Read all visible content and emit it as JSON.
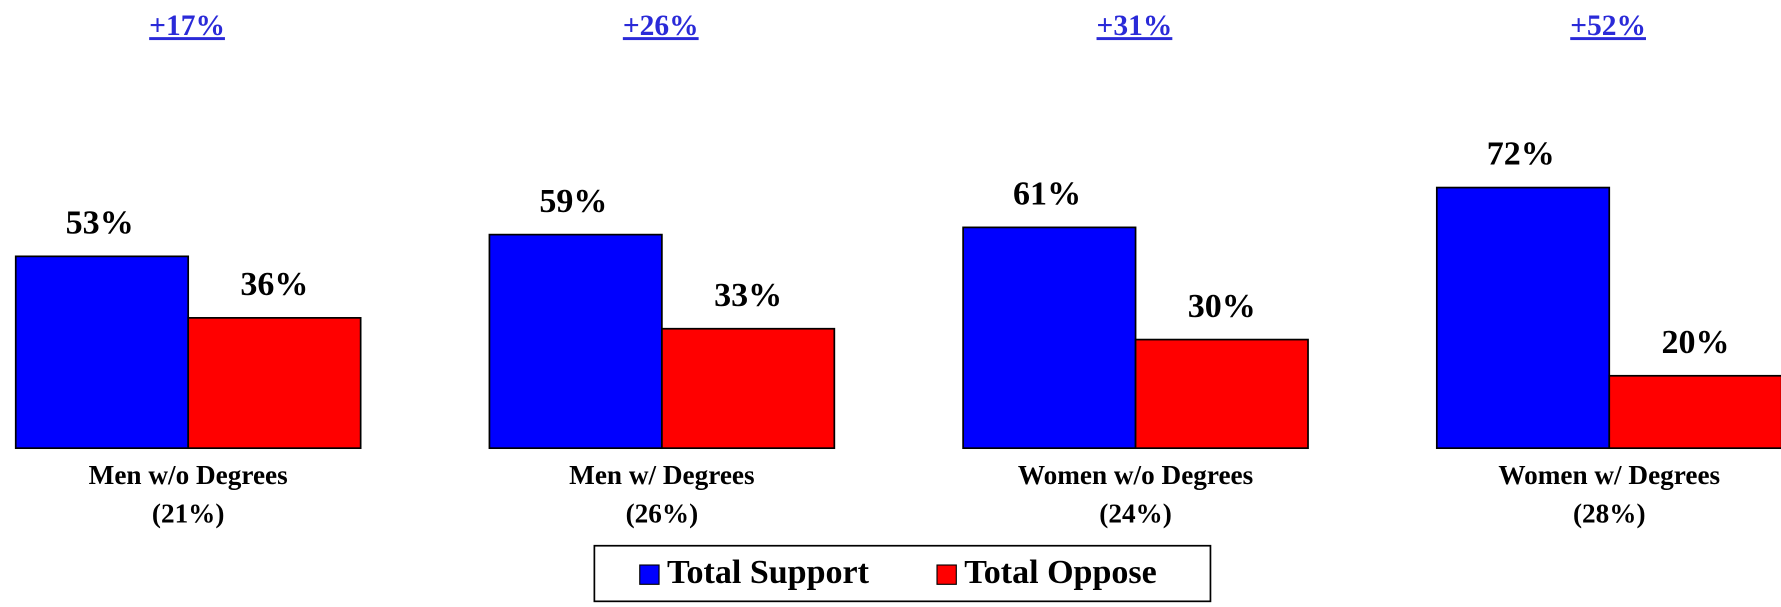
{
  "chart_data": {
    "type": "bar",
    "categories": [
      "Men w/o Degrees",
      "Men w/ Degrees",
      "Women w/o Degrees",
      "Women w/ Degrees"
    ],
    "category_notes": [
      "(21%)",
      "(26%)",
      "(24%)",
      "(28%)"
    ],
    "annotations": [
      "+17%",
      "+26%",
      "+31%",
      "+52%"
    ],
    "series": [
      {
        "name": "Total Support",
        "color": "#0000ff",
        "values": [
          53,
          59,
          61,
          72
        ],
        "value_labels": [
          "53%",
          "59%",
          "61%",
          "72%"
        ]
      },
      {
        "name": "Total Oppose",
        "color": "#ff0000",
        "values": [
          36,
          33,
          30,
          20
        ],
        "value_labels": [
          "36%",
          "33%",
          "30%",
          "20%"
        ]
      }
    ],
    "ylim": [
      0,
      100
    ],
    "legend": "bottom"
  }
}
